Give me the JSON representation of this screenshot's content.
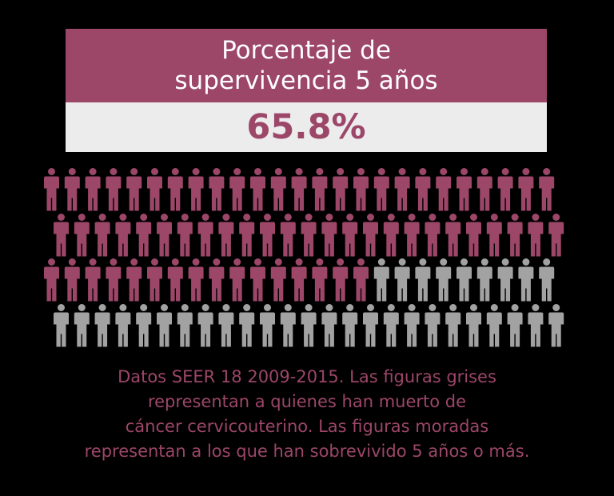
{
  "header": {
    "title_line1": "Porcentaje de",
    "title_line2": "supervivencia 5 años"
  },
  "chart_data": {
    "type": "pictograph",
    "title": "Porcentaje de supervivencia 5 años",
    "value_label": "65.8%",
    "percent_survived": 65.8,
    "rows": [
      25,
      25,
      25,
      25
    ],
    "colored_count": 66,
    "series": [
      {
        "name": "sobrevivido 5 años o más",
        "count": 66,
        "color": "#9c4668"
      },
      {
        "name": "muerto de cáncer cervicouterino",
        "count": 34,
        "color": "#a2a2a2"
      }
    ]
  },
  "caption": {
    "line1": "Datos SEER 18 2009-2015. Las figuras grises",
    "line2": "representan a quienes han muerto de",
    "line3": "cáncer cervicouterino. Las figuras moradas",
    "line4": "representan a los que han sobrevivido 5 años o más."
  },
  "colors": {
    "background": "#000000",
    "accent": "#9c4668",
    "gray": "#a2a2a2",
    "value_box": "#ececec"
  }
}
